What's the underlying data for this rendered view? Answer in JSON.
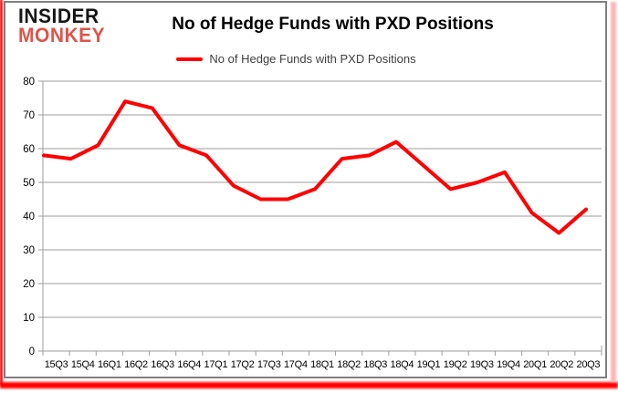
{
  "logo": {
    "line1": "INSIDER",
    "line2": "MONKEY",
    "color1": "#161616",
    "color2": "#df5449"
  },
  "title": "No of Hedge Funds with PXD Positions",
  "legend": {
    "label": "No of Hedge Funds with PXD Positions",
    "line_color": "#ff0000"
  },
  "chart_data": {
    "type": "line",
    "title": "No of Hedge Funds with PXD Positions",
    "categories": [
      "15Q3",
      "15Q4",
      "16Q1",
      "16Q2",
      "16Q3",
      "16Q4",
      "17Q1",
      "17Q2",
      "17Q3",
      "17Q4",
      "18Q1",
      "18Q2",
      "18Q3",
      "18Q4",
      "19Q1",
      "19Q2",
      "19Q3",
      "19Q4",
      "20Q1",
      "20Q2",
      "20Q3"
    ],
    "series": [
      {
        "name": "No of Hedge Funds with PXD Positions",
        "color": "#ff0000",
        "values": [
          58,
          57,
          61,
          74,
          72,
          61,
          58,
          49,
          45,
          45,
          48,
          57,
          58,
          62,
          55,
          48,
          50,
          53,
          41,
          35,
          42
        ]
      }
    ],
    "xlabel": "",
    "ylabel": "",
    "ylim": [
      0,
      80
    ],
    "ytick_step": 10,
    "grid": true,
    "legend_position": "top"
  },
  "colors": {
    "gridline": "#9e9e9e",
    "axis": "#9e9e9e",
    "tick_label": "#000000",
    "accent_red": "#ff0000",
    "card_border": "#7f7f7f",
    "edge_pink": "#ffb6b6"
  }
}
